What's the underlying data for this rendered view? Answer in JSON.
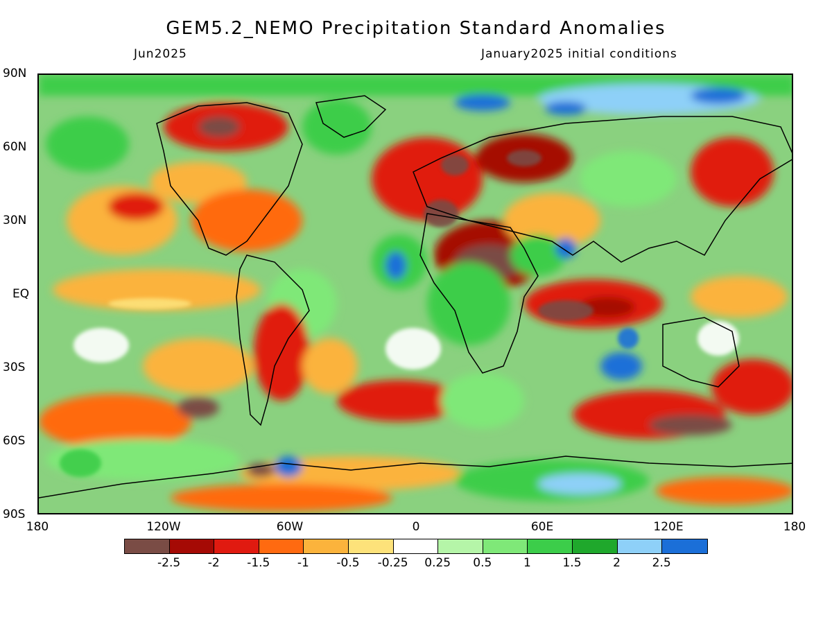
{
  "header": {
    "title": "GEM5.2_NEMO Precipitation Standard Anomalies",
    "valid_month": "Jun2025",
    "init": "January2025 initial conditions"
  },
  "axes": {
    "lat_labels": [
      "90N",
      "60N",
      "30N",
      "EQ",
      "30S",
      "60S",
      "90S"
    ],
    "lon_labels": [
      "180",
      "120W",
      "60W",
      "0",
      "60E",
      "120E",
      "180"
    ]
  },
  "colorbar": {
    "colors": [
      "#7a4c45",
      "#a50a05",
      "#e01a10",
      "#ff6a10",
      "#fbb33c",
      "#fde27a",
      "#ffffff",
      "#b5f5a8",
      "#7fe878",
      "#3ccd4a",
      "#1fa82c",
      "#8ed0f8",
      "#1b6fd8"
    ],
    "labels": [
      "-2.5",
      "-2",
      "-1.5",
      "-1",
      "-0.5",
      "-0.25",
      "0.25",
      "0.5",
      "1",
      "1.5",
      "2",
      "2.5"
    ]
  }
}
